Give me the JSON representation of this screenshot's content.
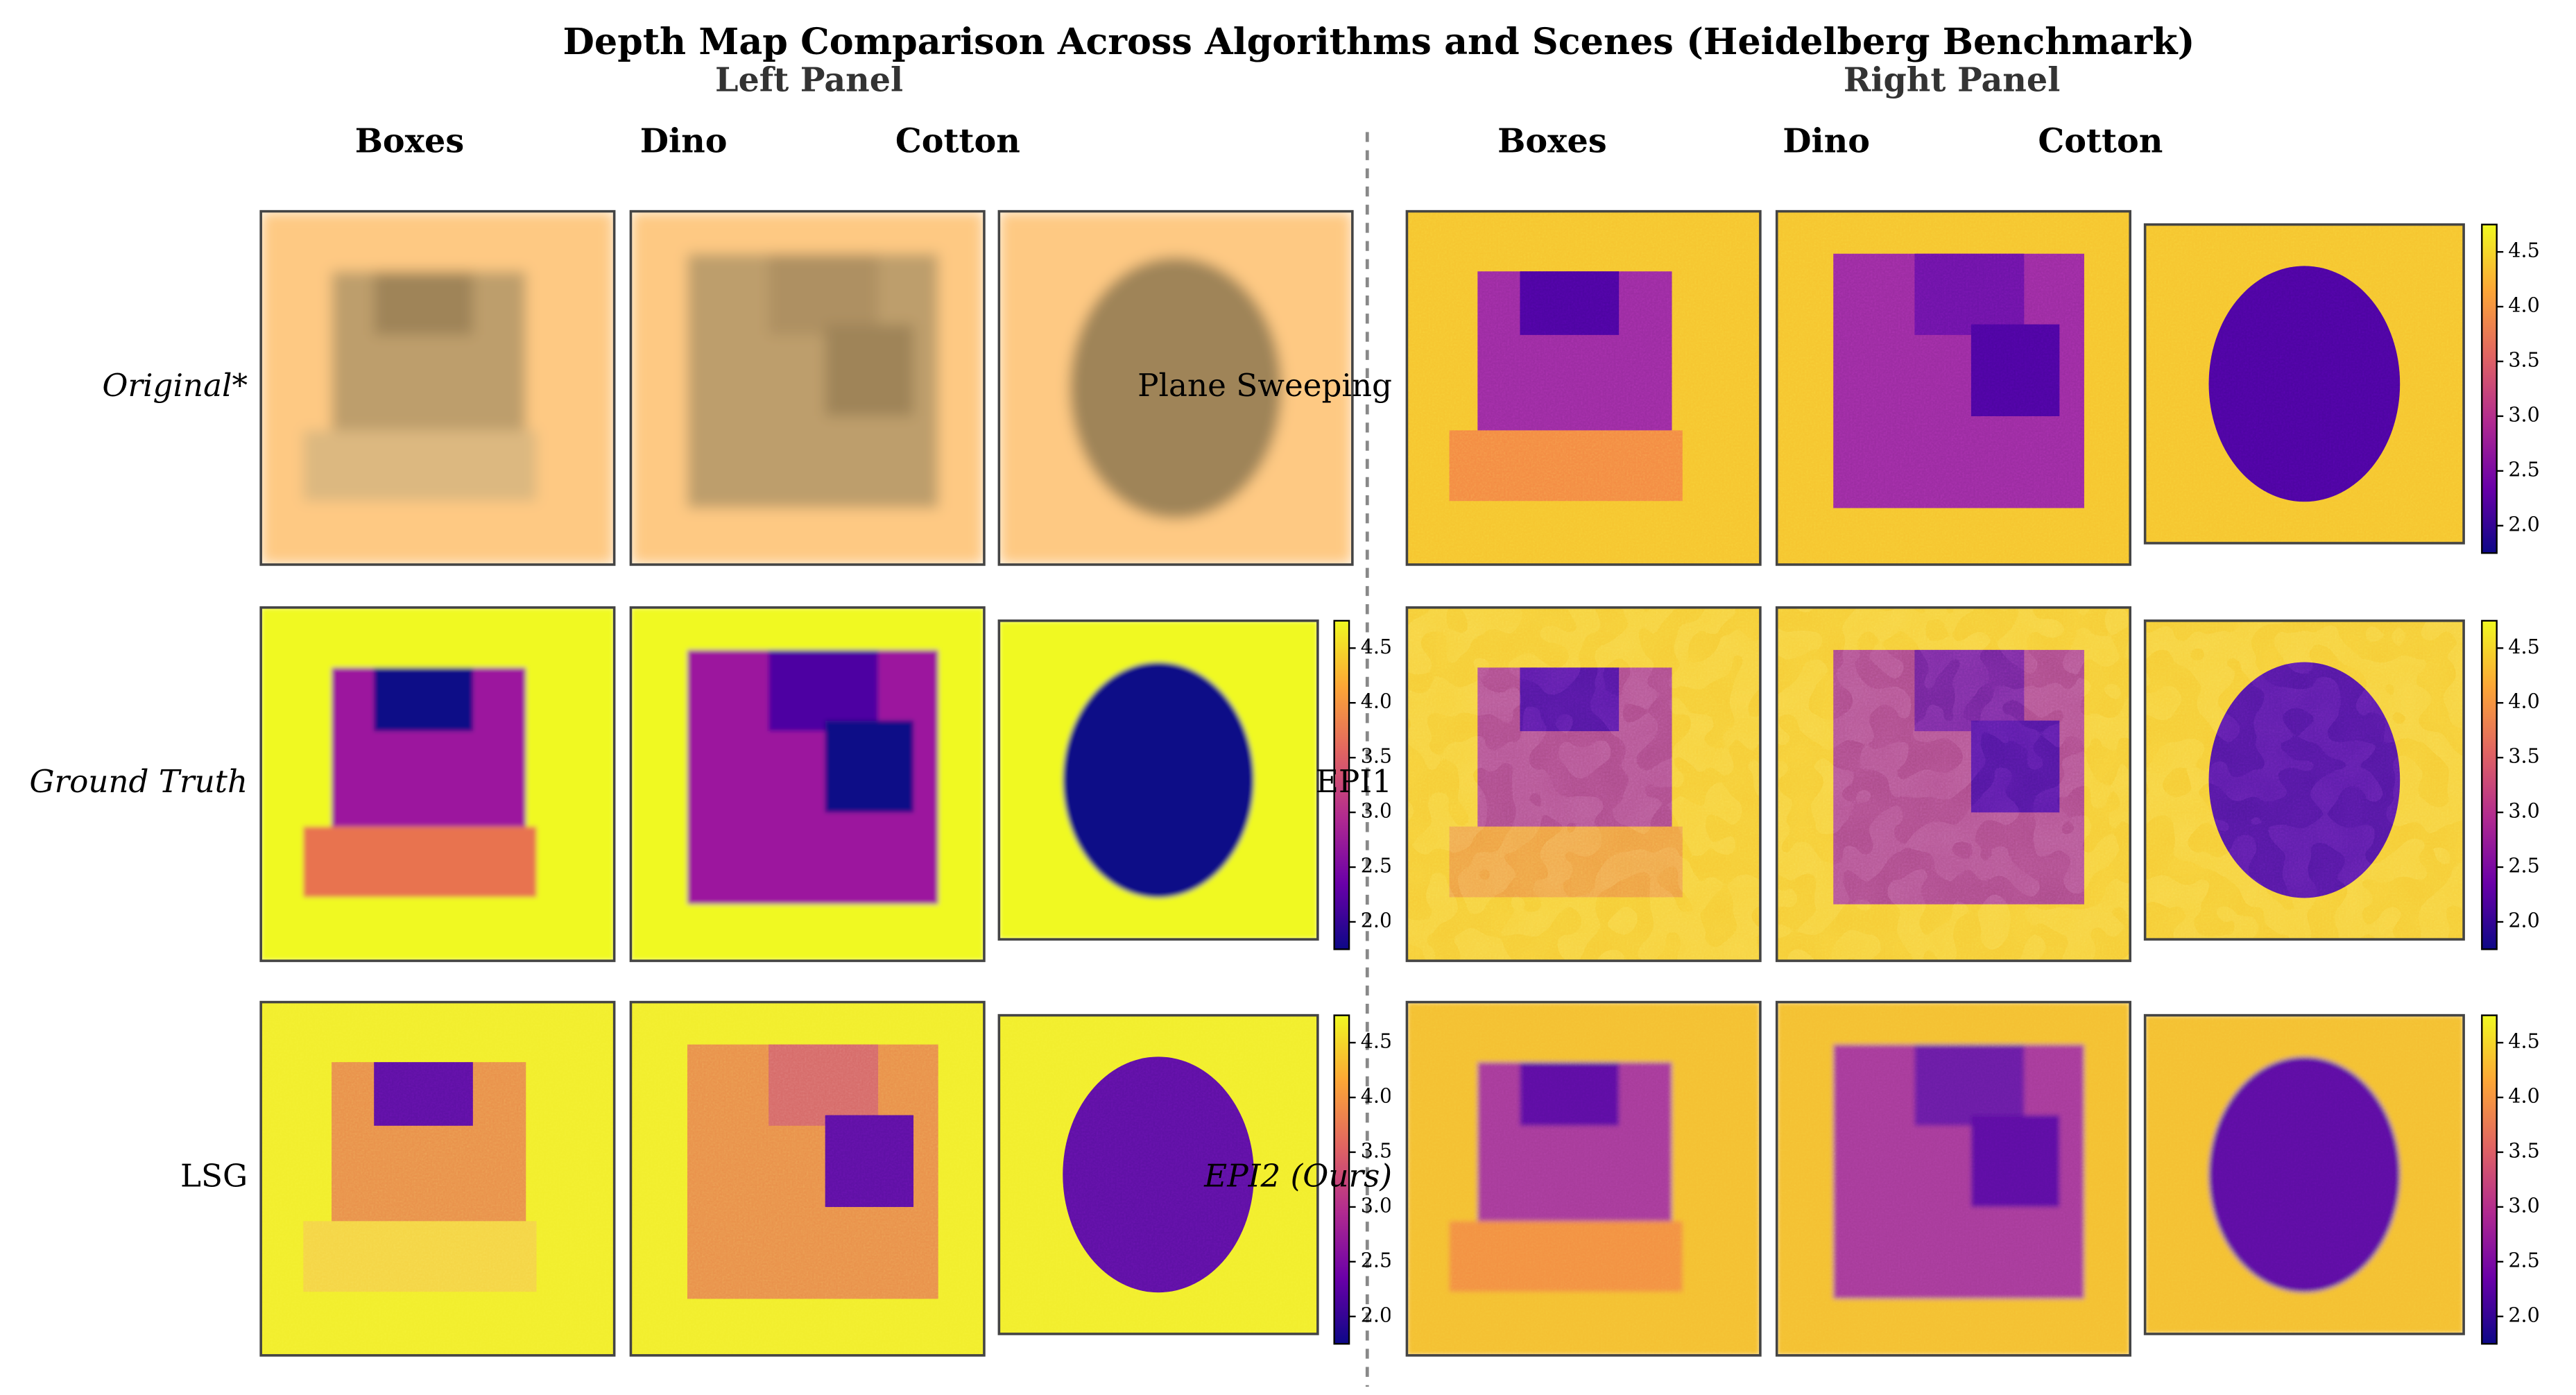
{
  "chart_data": {
    "type": "heatmap",
    "title": "Depth Map Comparison Across Algorithms and Scenes (Heidelberg Benchmark)",
    "panels": [
      {
        "title": "Left Panel",
        "columns": [
          "Boxes",
          "Dino",
          "Cotton"
        ],
        "rows": [
          "Original*",
          "Ground Truth",
          "LSG"
        ],
        "colorbar": [
          false,
          true,
          true
        ]
      },
      {
        "title": "Right Panel",
        "columns": [
          "Boxes",
          "Dino",
          "Cotton"
        ],
        "rows": [
          "Plane Sweeping",
          "EPI1",
          "EPI2 (Ours)"
        ],
        "colorbar": [
          true,
          true,
          true
        ]
      }
    ],
    "colorbar_lim": [
      1.75,
      4.75
    ],
    "colorbar_ticks": [
      {
        "value": 2,
        "label": "2.0"
      },
      2.5,
      {
        "value": 3,
        "label": "3.0"
      },
      3.5,
      {
        "value": 4,
        "label": "4.0"
      },
      4.5
    ]
  }
}
